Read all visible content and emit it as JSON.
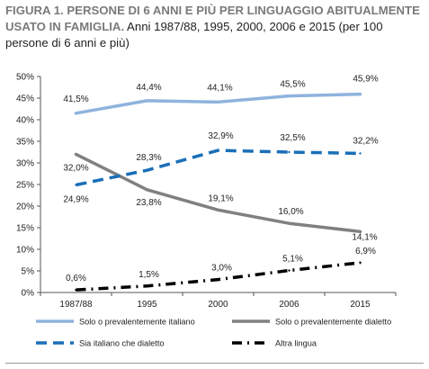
{
  "header": {
    "title_bold": "FIGURA 1. PERSONE DI 6 ANNI E PIÙ PER LINGUAGGIO ABITUALMENTE USATO IN FAMIGLIA.",
    "title_rest": " Anni 1987/88, 1995, 2000, 2006 e 2015 (per 100 persone di 6 anni e più)"
  },
  "chart_data": {
    "type": "line",
    "categories": [
      "1987/88",
      "1995",
      "2000",
      "2006",
      "2015"
    ],
    "ylim": [
      0,
      50
    ],
    "yticks": [
      "0%",
      "5%",
      "10%",
      "15%",
      "20%",
      "25%",
      "30%",
      "35%",
      "40%",
      "45%",
      "50%"
    ],
    "grid": false,
    "legend_position": "bottom",
    "series": [
      {
        "name": "Solo o prevalentemente italiano",
        "values": [
          41.5,
          44.4,
          44.1,
          45.5,
          45.9
        ],
        "labels": [
          "41,5%",
          "44,4%",
          "44,1%",
          "45,5%",
          "45,9%"
        ],
        "color": "#8fb3de",
        "style": "solid"
      },
      {
        "name": "Solo o prevalentemente dialetto",
        "values": [
          32.0,
          23.8,
          19.1,
          16.0,
          14.1
        ],
        "labels": [
          "32,0%",
          "23,8%",
          "19,1%",
          "16,0%",
          "14,1%"
        ],
        "color": "#808080",
        "style": "solid"
      },
      {
        "name": "Sia italiano che dialetto",
        "values": [
          24.9,
          28.3,
          32.9,
          32.5,
          32.2
        ],
        "labels": [
          "24,9%",
          "28,3%",
          "32,9%",
          "32,5%",
          "32,2%"
        ],
        "color": "#1a6fb8",
        "style": "dash"
      },
      {
        "name": "Altra lingua",
        "values": [
          0.6,
          1.5,
          3.0,
          5.1,
          6.9
        ],
        "labels": [
          "0,6%",
          "1,5%",
          "3,0%",
          "5,1%",
          "6,9%"
        ],
        "color": "#000000",
        "style": "dashdot"
      }
    ]
  }
}
